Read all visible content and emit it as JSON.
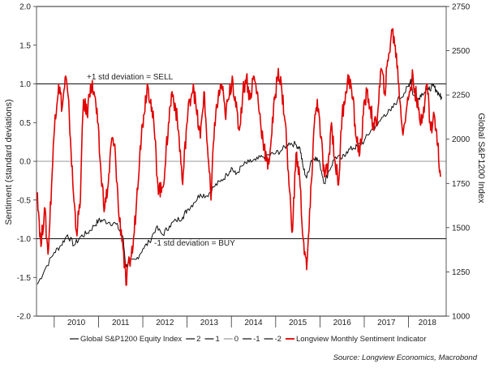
{
  "chart_data": {
    "type": "line",
    "title": "",
    "xlabel": "",
    "ylabel": "Sentiment (standard deviations)",
    "y2label": "Global S&P1200 Index",
    "ylim": [
      -2.0,
      2.0
    ],
    "y2lim": [
      1000,
      2750
    ],
    "xlim": [
      2009.6,
      2018.85
    ],
    "x_ticks": [
      "2010",
      "2011",
      "2012",
      "2013",
      "2014",
      "2015",
      "2016",
      "2017",
      "2018"
    ],
    "y_ticks": [
      "2.0",
      "1.5",
      "1.0",
      "0.5",
      "0.0",
      "-0.5",
      "-1.0",
      "-1.5",
      "-2.0"
    ],
    "y2_ticks": [
      "2750",
      "2500",
      "2250",
      "2000",
      "1750",
      "1500",
      "1250",
      "1000"
    ],
    "reference_lines": [
      {
        "name": "2",
        "value": 2.0
      },
      {
        "name": "1",
        "value": 1.0
      },
      {
        "name": "0",
        "value": 0.0
      },
      {
        "name": "-1",
        "value": -1.0
      },
      {
        "name": "-2",
        "value": -2.0
      }
    ],
    "annotations": [
      {
        "text": "+1 std deviation = SELL",
        "value": 1.0
      },
      {
        "text": "-1 std deviation = BUY",
        "value": -1.0
      }
    ],
    "series": [
      {
        "name": "Global S&P1200 Equity Index",
        "axis": "right",
        "color": "#111111",
        "x": [
          2009.62,
          2009.8,
          2010.0,
          2010.15,
          2010.3,
          2010.45,
          2010.6,
          2010.75,
          2010.9,
          2011.0,
          2011.1,
          2011.25,
          2011.4,
          2011.55,
          2011.62,
          2011.7,
          2011.85,
          2012.0,
          2012.15,
          2012.3,
          2012.45,
          2012.6,
          2012.75,
          2012.9,
          2013.0,
          2013.15,
          2013.3,
          2013.45,
          2013.6,
          2013.75,
          2013.9,
          2014.0,
          2014.1,
          2014.25,
          2014.4,
          2014.55,
          2014.7,
          2014.85,
          2015.0,
          2015.15,
          2015.3,
          2015.45,
          2015.55,
          2015.62,
          2015.7,
          2015.8,
          2015.9,
          2016.0,
          2016.1,
          2016.2,
          2016.35,
          2016.5,
          2016.6,
          2016.75,
          2016.85,
          2017.0,
          2017.15,
          2017.3,
          2017.45,
          2017.6,
          2017.75,
          2017.9,
          2018.0,
          2018.05,
          2018.1,
          2018.2,
          2018.3,
          2018.45,
          2018.55,
          2018.62,
          2018.7,
          2018.75
        ],
        "values": [
          1180,
          1270,
          1360,
          1400,
          1460,
          1400,
          1450,
          1470,
          1510,
          1540,
          1540,
          1530,
          1520,
          1450,
          1280,
          1300,
          1320,
          1380,
          1420,
          1500,
          1460,
          1510,
          1540,
          1560,
          1600,
          1640,
          1690,
          1680,
          1730,
          1760,
          1800,
          1840,
          1800,
          1850,
          1870,
          1880,
          1900,
          1910,
          1920,
          1940,
          1980,
          1970,
          1950,
          1840,
          1780,
          1880,
          1900,
          1860,
          1750,
          1820,
          1900,
          1890,
          1930,
          1950,
          1960,
          1990,
          2050,
          2080,
          2140,
          2160,
          2220,
          2260,
          2300,
          2340,
          2250,
          2220,
          2260,
          2280,
          2300,
          2280,
          2250,
          2230
        ]
      },
      {
        "name": "Longview Monthly Sentiment Indicator",
        "axis": "left",
        "color": "#e00000",
        "x": [
          2009.62,
          2009.7,
          2009.78,
          2009.86,
          2009.94,
          2010.02,
          2010.1,
          2010.18,
          2010.26,
          2010.34,
          2010.42,
          2010.5,
          2010.58,
          2010.66,
          2010.74,
          2010.82,
          2010.9,
          2010.98,
          2011.06,
          2011.14,
          2011.22,
          2011.3,
          2011.38,
          2011.46,
          2011.54,
          2011.62,
          2011.7,
          2011.78,
          2011.86,
          2011.94,
          2012.02,
          2012.1,
          2012.18,
          2012.26,
          2012.34,
          2012.42,
          2012.5,
          2012.58,
          2012.66,
          2012.74,
          2012.82,
          2012.9,
          2012.98,
          2013.06,
          2013.14,
          2013.22,
          2013.3,
          2013.38,
          2013.46,
          2013.54,
          2013.62,
          2013.7,
          2013.78,
          2013.86,
          2013.94,
          2014.02,
          2014.1,
          2014.18,
          2014.26,
          2014.34,
          2014.42,
          2014.5,
          2014.58,
          2014.66,
          2014.74,
          2014.82,
          2014.9,
          2014.98,
          2015.06,
          2015.14,
          2015.22,
          2015.3,
          2015.38,
          2015.46,
          2015.54,
          2015.62,
          2015.7,
          2015.78,
          2015.86,
          2015.94,
          2016.02,
          2016.1,
          2016.18,
          2016.26,
          2016.34,
          2016.42,
          2016.5,
          2016.58,
          2016.66,
          2016.74,
          2016.82,
          2016.9,
          2016.98,
          2017.06,
          2017.14,
          2017.22,
          2017.3,
          2017.38,
          2017.46,
          2017.54,
          2017.62,
          2017.7,
          2017.78,
          2017.86,
          2017.94,
          2018.02,
          2018.1,
          2018.18,
          2018.26,
          2018.34,
          2018.42,
          2018.5,
          2018.58,
          2018.66,
          2018.72
        ],
        "values": [
          -0.4,
          -1.1,
          -0.6,
          -1.2,
          -0.3,
          0.6,
          1.0,
          0.7,
          1.1,
          0.6,
          -0.3,
          -0.9,
          -0.6,
          0.8,
          0.6,
          1.0,
          0.9,
          0.5,
          -0.2,
          -0.6,
          -0.3,
          0.3,
          0.1,
          -0.7,
          -1.0,
          -1.6,
          -1.3,
          -1.1,
          -0.5,
          0.2,
          0.6,
          1.0,
          0.8,
          0.4,
          -0.3,
          -0.4,
          -0.1,
          0.5,
          0.9,
          0.7,
          0.3,
          -0.3,
          0.4,
          0.8,
          1.0,
          0.6,
          0.3,
          0.9,
          0.2,
          -0.5,
          0.5,
          0.8,
          1.0,
          0.6,
          0.8,
          1.1,
          0.7,
          0.4,
          0.9,
          1.1,
          0.8,
          1.1,
          0.9,
          0.5,
          0.2,
          -0.1,
          0.3,
          0.8,
          1.2,
          0.9,
          0.5,
          -0.3,
          -0.9,
          0.1,
          -0.2,
          -1.0,
          -1.4,
          -0.6,
          0.4,
          0.8,
          0.3,
          -0.2,
          -0.1,
          0.5,
          0.0,
          -0.3,
          0.6,
          0.9,
          1.1,
          0.8,
          0.3,
          0.1,
          0.6,
          0.9,
          0.7,
          0.4,
          0.6,
          1.2,
          0.9,
          1.3,
          1.7,
          1.5,
          1.0,
          0.4,
          0.6,
          0.9,
          1.1,
          0.8,
          0.5,
          0.7,
          1.0,
          0.4,
          0.6,
          0.2,
          -0.2
        ]
      }
    ]
  },
  "legend": {
    "items": [
      {
        "label": "Global S&P1200 Equity Index",
        "color": "#111111"
      },
      {
        "label": "2",
        "color": "#111111"
      },
      {
        "label": "1",
        "color": "#111111"
      },
      {
        "label": "0",
        "color": "#9a9a9a"
      },
      {
        "label": "-1",
        "color": "#111111"
      },
      {
        "label": "-2",
        "color": "#111111"
      },
      {
        "label": "Longview Monthly Sentiment Indicator",
        "color": "#e00000"
      }
    ]
  },
  "source": "Source: Longview Economics, Macrobond"
}
